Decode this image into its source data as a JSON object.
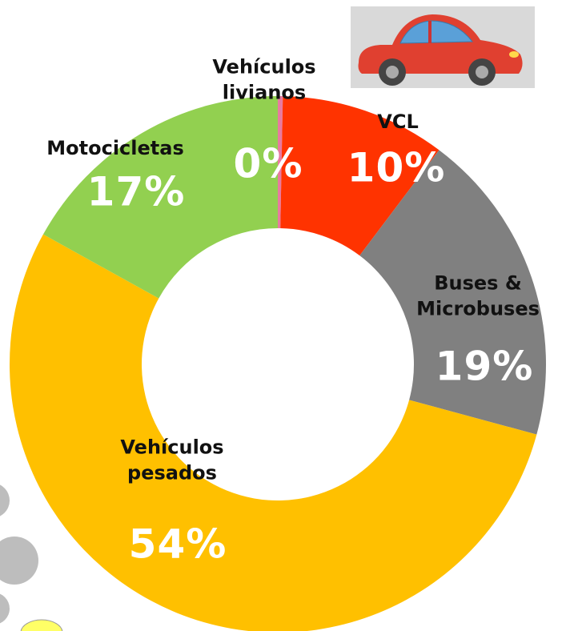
{
  "chart_data": {
    "type": "donut",
    "categories": [
      "Vehículos livianos",
      "VCL",
      "Buses & Microbuses",
      "Vehículos pesados",
      "Motocicletas"
    ],
    "values": [
      0.3,
      10,
      19,
      54,
      17
    ],
    "value_labels": [
      "0%",
      "10%",
      "19%",
      "54%",
      "17%"
    ],
    "colors": [
      "#e87aa0",
      "#ff3300",
      "#808080",
      "#ffc000",
      "#92d050"
    ]
  }
}
